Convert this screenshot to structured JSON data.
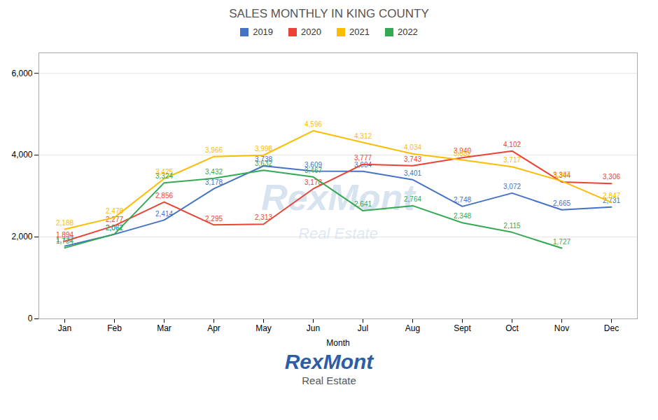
{
  "chart_data": {
    "type": "line",
    "title": "SALES MONTHLY IN KING COUNTY",
    "xlabel": "Month",
    "categories": [
      "Jan",
      "Feb",
      "Mar",
      "Apr",
      "May",
      "Jun",
      "Jul",
      "Aug",
      "Sept",
      "Oct",
      "Nov",
      "Dec"
    ],
    "series": [
      {
        "name": "2019",
        "color": "#4472C4",
        "values": [
          1777,
          2067,
          2414,
          3178,
          3738,
          3609,
          3604,
          3401,
          2748,
          3072,
          2665,
          2731
        ],
        "value_labels": [
          "1,777",
          "2,067",
          "2,414",
          "3,178",
          "3,738",
          "3,609",
          "3,604",
          "3,401",
          "2,748",
          "3,072",
          "2,665",
          "2,731"
        ]
      },
      {
        "name": "2020",
        "color": "#EA4335",
        "values": [
          1894,
          2277,
          2856,
          2295,
          2313,
          3178,
          3777,
          3743,
          3940,
          4102,
          3344,
          3306
        ],
        "value_labels": [
          "1,894",
          "2,277",
          "2,856",
          "2,295",
          "2,313",
          "3,178",
          "3,777",
          "3,743",
          "3,940",
          "4,102",
          "3,344",
          "3,306"
        ]
      },
      {
        "name": "2021",
        "color": "#FBBC04",
        "values": [
          2188,
          2478,
          3425,
          3966,
          3998,
          4596,
          4312,
          4034,
          3882,
          3717,
          3367,
          2847
        ],
        "value_labels": [
          "2,188",
          "2,478",
          "3,425",
          "3,966",
          "3,998",
          "4,596",
          "4,312",
          "4,034",
          "3,882",
          "3,717",
          "3,367",
          "2,847"
        ]
      },
      {
        "name": "2022",
        "color": "#34A853",
        "values": [
          1734,
          2072,
          3324,
          3432,
          3632,
          3467,
          2641,
          2764,
          2348,
          2115,
          1727,
          null
        ],
        "value_labels": [
          "1,734",
          "2,072",
          "3,324",
          "3,432",
          "3,632",
          "3,467",
          "2,641",
          "2,764",
          "2,348",
          "2,115",
          "1,727",
          null
        ]
      }
    ],
    "ylim": [
      0,
      6500
    ],
    "yticks": [
      0,
      {
        "value": 2000,
        "label": "2,000"
      },
      {
        "value": 4000,
        "label": "4,000"
      },
      {
        "value": 6000,
        "label": "6,000"
      }
    ],
    "grid": true,
    "legend": "top",
    "data_labels": true,
    "annotations": [
      "RexMont",
      "Real Estate",
      "RexMont",
      "Real Estate"
    ]
  }
}
